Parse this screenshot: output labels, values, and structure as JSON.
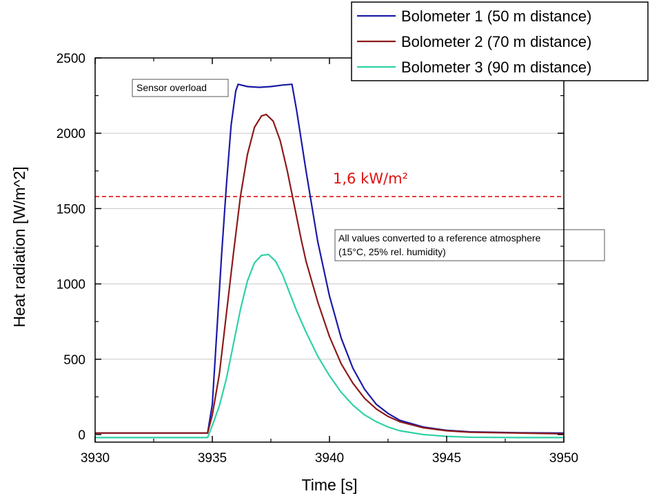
{
  "chart_data": {
    "type": "line",
    "xlabel": "Time [s]",
    "ylabel": "Heat radiation [W/m^2]",
    "xlim": [
      3930,
      3950
    ],
    "ylim": [
      -50,
      2500
    ],
    "xticks": [
      3930,
      3935,
      3940,
      3945,
      3950
    ],
    "yticks": [
      0,
      500,
      1000,
      1500,
      2000,
      2500
    ],
    "grid": "horizontal",
    "legend_position": "top-right",
    "series": [
      {
        "name": "Bolometer 1 (50 m distance)",
        "color": "#1a1aa6",
        "x": [
          3930,
          3934.8,
          3935.0,
          3935.2,
          3935.4,
          3935.6,
          3935.8,
          3936.0,
          3936.1,
          3936.5,
          3937.0,
          3937.5,
          3938.0,
          3938.4,
          3938.6,
          3938.8,
          3939.0,
          3939.5,
          3940.0,
          3940.5,
          3941.0,
          3941.5,
          3942.0,
          3942.5,
          3943.0,
          3944.0,
          3945.0,
          3946.0,
          3948.0,
          3950.0
        ],
        "values": [
          10,
          10,
          200,
          700,
          1200,
          1650,
          2050,
          2280,
          2325,
          2310,
          2305,
          2310,
          2320,
          2325,
          2150,
          1950,
          1750,
          1280,
          920,
          640,
          440,
          300,
          200,
          140,
          95,
          50,
          28,
          18,
          12,
          10
        ]
      },
      {
        "name": "Bolometer 2 (70 m distance)",
        "color": "#8c1a1a",
        "x": [
          3930,
          3934.8,
          3935.0,
          3935.3,
          3935.6,
          3935.9,
          3936.2,
          3936.5,
          3936.8,
          3937.1,
          3937.3,
          3937.6,
          3937.9,
          3938.2,
          3938.5,
          3938.8,
          3939.0,
          3939.5,
          3940.0,
          3940.5,
          3941.0,
          3941.5,
          3942.0,
          3942.5,
          3943.0,
          3944.0,
          3945.0,
          3946.0,
          3948.0,
          3950.0
        ],
        "values": [
          10,
          10,
          130,
          400,
          800,
          1200,
          1580,
          1860,
          2040,
          2115,
          2125,
          2080,
          1950,
          1750,
          1520,
          1290,
          1150,
          880,
          650,
          470,
          340,
          240,
          170,
          120,
          85,
          45,
          25,
          15,
          10,
          5
        ]
      },
      {
        "name": "Bolometer 3 (90 m distance)",
        "color": "#2fd1a6",
        "x": [
          3930,
          3934.8,
          3935.0,
          3935.3,
          3935.6,
          3935.9,
          3936.2,
          3936.5,
          3936.8,
          3937.1,
          3937.4,
          3937.7,
          3938.0,
          3938.3,
          3938.6,
          3939.0,
          3939.5,
          3940.0,
          3940.5,
          3941.0,
          3941.5,
          3942.0,
          3942.5,
          3943.0,
          3944.0,
          3945.0,
          3946.0,
          3948.0,
          3950.0
        ],
        "values": [
          -20,
          -20,
          60,
          190,
          370,
          600,
          830,
          1020,
          1140,
          1190,
          1195,
          1150,
          1060,
          940,
          820,
          680,
          520,
          390,
          280,
          195,
          130,
          85,
          50,
          25,
          0,
          -12,
          -18,
          -20,
          -20
        ]
      }
    ],
    "threshold": {
      "value": 1580,
      "label": "1,6 kW/m²",
      "color": "#e01010",
      "style": "dashed"
    },
    "annotations": [
      {
        "text": "Sensor overload",
        "x": 3935.5,
        "y": 2310
      },
      {
        "lines": [
          "All values converted to a reference atmosphere",
          "(15°C, 25% rel. humidity)"
        ],
        "x": 3940.3,
        "y": 1230
      }
    ]
  }
}
